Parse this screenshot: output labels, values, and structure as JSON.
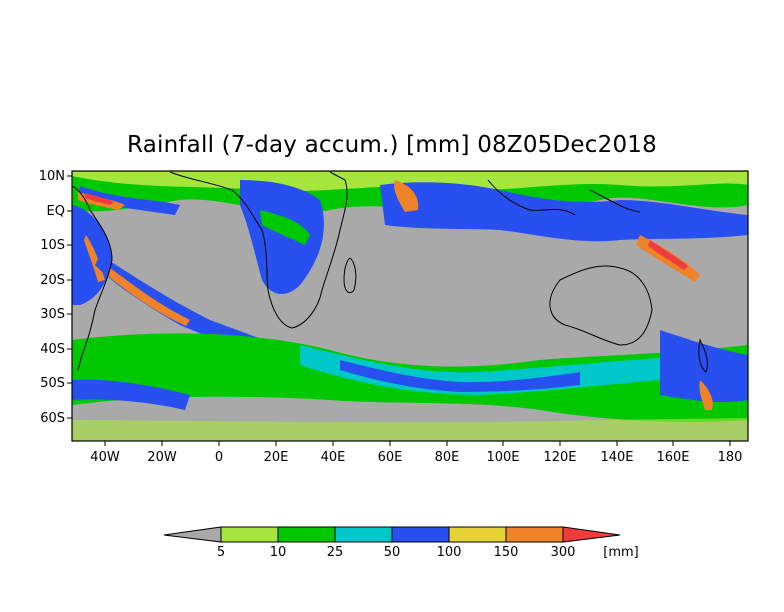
{
  "title": "Rainfall (7-day accum.) [mm] 08Z05Dec2018",
  "lat_labels": [
    "10N",
    "EQ",
    "10S",
    "20S",
    "30S",
    "40S",
    "50S",
    "60S"
  ],
  "lon_labels": [
    "40W",
    "20W",
    "0",
    "20E",
    "40E",
    "60E",
    "80E",
    "100E",
    "120E",
    "140E",
    "160E",
    "180"
  ],
  "colorbar": {
    "levels": [
      "5",
      "10",
      "25",
      "50",
      "100",
      "150",
      "300"
    ],
    "unit": "[mm]",
    "colors": [
      "#a9a9a9",
      "#a6e63c",
      "#00c800",
      "#00c8c8",
      "#2850f0",
      "#e6d232",
      "#f08228",
      "#f03c3c"
    ]
  },
  "background_color": "#a9a9a9"
}
